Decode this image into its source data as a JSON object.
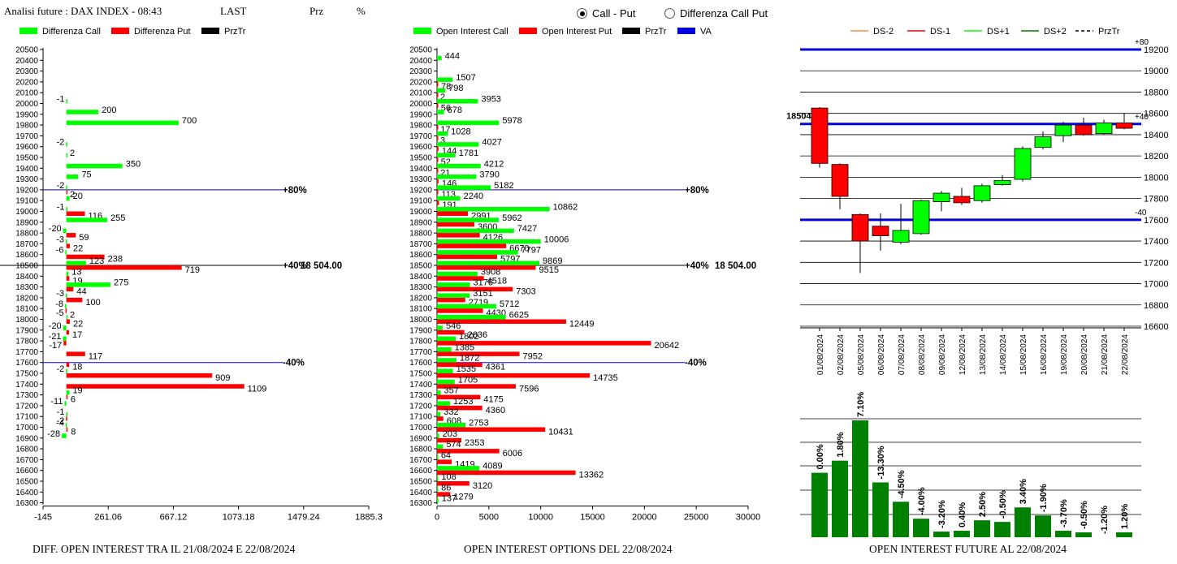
{
  "header": {
    "title": "Analisi future : DAX INDEX - 08:43",
    "last_label": "LAST",
    "prz_label": "Prz",
    "pct_label": "%"
  },
  "radio": {
    "option1": "Call - Put",
    "option2": "Differenza Call Put",
    "selected": 1
  },
  "colors": {
    "call": "#00ff00",
    "put": "#ff0000",
    "przTr": "#000000",
    "va": "#0000dd",
    "dark_green": "#008000"
  },
  "footers": {
    "left": "DIFF. OPEN INTEREST TRA IL 21/08/2024 E 22/08/2024",
    "middle": "OPEN INTEREST OPTIONS DEL 22/08/2024",
    "right": "OPEN INTEREST FUTURE AL 22/08/2024"
  },
  "chart_data": [
    {
      "type": "bar",
      "orientation": "horizontal",
      "legend": [
        "Differenza Call",
        "Differenza Put",
        "PrzTr"
      ],
      "strikes": [
        20500,
        20400,
        20300,
        20200,
        20100,
        20000,
        19900,
        19800,
        19700,
        19600,
        19500,
        19400,
        19300,
        19200,
        19100,
        19000,
        18900,
        18800,
        18700,
        18600,
        18500,
        18400,
        18300,
        18200,
        18100,
        18000,
        17900,
        17800,
        17700,
        17600,
        17500,
        17400,
        17300,
        17200,
        17100,
        17000,
        16900,
        16800,
        16700,
        16600,
        16500,
        16400,
        16300
      ],
      "call_diff": [
        null,
        null,
        null,
        null,
        null,
        -1,
        200,
        700,
        null,
        -2,
        2,
        350,
        75,
        -2,
        20,
        -1,
        255,
        -20,
        -3,
        -6,
        123,
        13,
        275,
        -3,
        -8,
        2,
        -20,
        -21,
        null,
        null,
        -2,
        null,
        19,
        -11,
        -1,
        -4,
        -28,
        null,
        null,
        null,
        null,
        null,
        null
      ],
      "put_diff": [
        null,
        null,
        null,
        null,
        null,
        null,
        null,
        null,
        null,
        null,
        null,
        null,
        null,
        2,
        null,
        116,
        null,
        59,
        22,
        238,
        719,
        19,
        44,
        100,
        -5,
        22,
        17,
        -17,
        117,
        18,
        909,
        1109,
        6,
        null,
        -2,
        8,
        null,
        null,
        null,
        null,
        null,
        null,
        null
      ],
      "x_ticks": [
        "-145",
        "261.06",
        "667.12",
        "1073.18",
        "1479.24",
        "1885.3"
      ],
      "xlim": [
        -145,
        1885.3
      ],
      "levels": [
        {
          "strike": 19200,
          "label": "+80%"
        },
        {
          "strike": 18500,
          "label": "+40%"
        },
        {
          "strike": 17600,
          "label": "-40%"
        }
      ],
      "price_label": "18 504.00",
      "price_strike": 18500
    },
    {
      "type": "bar",
      "orientation": "horizontal",
      "legend": [
        "Open Interest Call",
        "Open Interest Put",
        "PrzTr",
        "VA"
      ],
      "strikes": [
        20500,
        20400,
        20300,
        20200,
        20100,
        20000,
        19900,
        19800,
        19700,
        19600,
        19500,
        19400,
        19300,
        19200,
        19100,
        19000,
        18900,
        18800,
        18700,
        18600,
        18500,
        18400,
        18300,
        18200,
        18100,
        18000,
        17900,
        17800,
        17700,
        17600,
        17500,
        17400,
        17300,
        17200,
        17100,
        17000,
        16900,
        16800,
        16700,
        16600,
        16500,
        16400,
        16300
      ],
      "call_oi": [
        null,
        444,
        null,
        1507,
        798,
        3953,
        678,
        5978,
        1028,
        4027,
        1781,
        4212,
        3790,
        5182,
        2240,
        10862,
        5962,
        7427,
        10006,
        7797,
        9869,
        3908,
        3176,
        3151,
        5712,
        6625,
        546,
        1802,
        1385,
        1872,
        1535,
        1705,
        357,
        1253,
        332,
        2753,
        203,
        574,
        64,
        4089,
        108,
        86,
        137
      ],
      "put_oi": [
        null,
        null,
        null,
        78,
        2,
        56,
        null,
        17,
        3,
        144,
        52,
        21,
        146,
        113,
        191,
        2991,
        3600,
        4126,
        6670,
        5797,
        9515,
        4518,
        7303,
        2719,
        4430,
        12449,
        2636,
        20642,
        7952,
        4361,
        14735,
        7596,
        4175,
        4360,
        608,
        10431,
        2353,
        6006,
        1419,
        13362,
        3120,
        1279,
        null
      ],
      "x_ticks": [
        "0",
        "5000",
        "10000",
        "15000",
        "20000",
        "25000",
        "30000"
      ],
      "xlim": [
        0,
        30000
      ],
      "levels": [
        {
          "strike": 19200,
          "label": "+80%"
        },
        {
          "strike": 18500,
          "label": "+40%"
        },
        {
          "strike": 17600,
          "label": "-40%"
        }
      ],
      "price_label": "18 504.00",
      "price_strike": 18500
    },
    {
      "type": "candlestick",
      "legend": [
        "DS-2",
        "DS-1",
        "DS+1",
        "DS+2",
        "PrzTr"
      ],
      "dates": [
        "01/08/2024",
        "02/08/2024",
        "05/08/2024",
        "06/08/2024",
        "07/08/2024",
        "08/08/2024",
        "09/08/2024",
        "12/08/2024",
        "13/08/2024",
        "14/08/2024",
        "15/08/2024",
        "16/08/2024",
        "19/08/2024",
        "20/08/2024",
        "21/08/2024",
        "22/08/2024"
      ],
      "open": [
        18650,
        18120,
        17650,
        17540,
        17390,
        17470,
        17770,
        17820,
        17780,
        17930,
        17980,
        18280,
        18390,
        18490,
        18410,
        18510
      ],
      "close": [
        18130,
        17820,
        17400,
        17450,
        17500,
        17780,
        17850,
        17760,
        17920,
        17970,
        18270,
        18380,
        18490,
        18400,
        18510,
        18460
      ],
      "high": [
        18660,
        18130,
        17660,
        17660,
        17750,
        17790,
        17870,
        17900,
        17940,
        18020,
        18290,
        18430,
        18520,
        18560,
        18540,
        18600
      ],
      "low": [
        18090,
        17700,
        17100,
        17310,
        17370,
        17460,
        17680,
        17740,
        17760,
        17920,
        17960,
        18260,
        18330,
        18390,
        18400,
        18450
      ],
      "yticks": [
        "19200",
        "19000",
        "18800",
        "18600",
        "18400",
        "18200",
        "18000",
        "17800",
        "17600",
        "17400",
        "17200",
        "17000",
        "16800",
        "16600"
      ],
      "ylim": [
        16600,
        19200
      ],
      "levels": [
        {
          "value": 19200,
          "label": "+80"
        },
        {
          "value": 18500,
          "label": "+40"
        },
        {
          "value": 17600,
          "label": "-40"
        }
      ],
      "price_label": "18504"
    },
    {
      "type": "bar",
      "labels": [
        "0.00%",
        "1.80%",
        "7.10%",
        "-13.30%",
        "-4.50%",
        "-4.00%",
        "-3.20%",
        "0.40%",
        "2.50%",
        "-0.50%",
        "3.40%",
        "-1.90%",
        "-3.70%",
        "-0.50%",
        "-1.20%",
        "1.20%"
      ],
      "values": [
        80,
        95,
        145,
        68,
        44,
        23,
        7,
        8,
        21,
        19,
        37,
        27,
        8,
        6,
        0,
        6
      ]
    }
  ]
}
